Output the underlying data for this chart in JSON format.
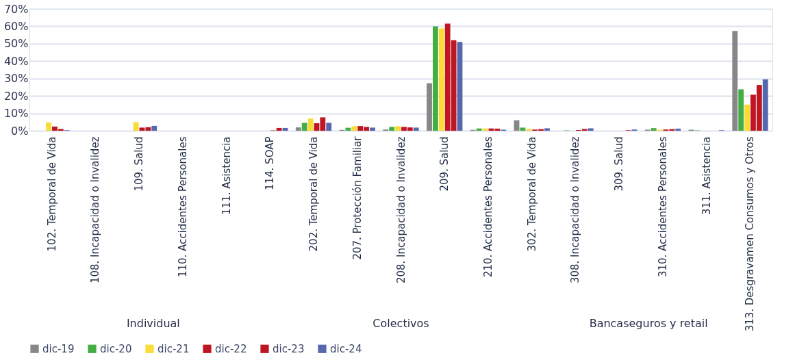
{
  "chart_data": {
    "type": "bar",
    "categories": [
      "102. Temporal de Vida",
      "108. Incapacidad o Invalidez",
      "109. Salud",
      "110. Accidentes Personales",
      "111. Asistencia",
      "114. SOAP",
      "202. Temporal de Vida",
      "207. Protección Familiar",
      "208. Incapacidad o Invalidez",
      "209. Salud",
      "210. Accidentes Personales",
      "302. Temporal de Vida",
      "308. Incapacidad o Invalidez",
      "309. Salud",
      "310. Accidentes Personales",
      "311. Asistencia",
      "313. Desgravamen Consumos y Otros"
    ],
    "series": [
      {
        "name": "dic-19",
        "color": "#878787",
        "values": [
          0,
          0,
          0,
          0,
          0,
          0,
          1.9,
          0.5,
          0.7,
          27.3,
          0.5,
          6,
          0,
          0,
          0.6,
          0.6,
          57.3
        ]
      },
      {
        "name": "dic-20",
        "color": "#44ad45",
        "values": [
          0,
          0,
          0,
          0,
          0,
          0,
          4.5,
          1.7,
          2.2,
          60,
          1.3,
          1.8,
          0.2,
          0,
          1.5,
          0.2,
          23.8
        ]
      },
      {
        "name": "dic-21",
        "color": "#f9dc35",
        "values": [
          4.8,
          0,
          4.9,
          0,
          0,
          0,
          7,
          2.6,
          2.6,
          58.8,
          1.3,
          1,
          null,
          0,
          0.6,
          0,
          15
        ]
      },
      {
        "name": "dic-22",
        "color": "#be1622",
        "values": [
          2.4,
          0,
          1.8,
          0,
          0,
          0.2,
          4.3,
          2.7,
          2.2,
          61.5,
          1.3,
          0.7,
          0.4,
          0,
          0.7,
          0,
          20.7
        ]
      },
      {
        "name": "dic-23",
        "color": "#be1622",
        "values": [
          1,
          0,
          2,
          0,
          0,
          1.6,
          7.7,
          2.2,
          1.9,
          52,
          1.2,
          0.9,
          1,
          0.3,
          0.9,
          0,
          26.3
        ]
      },
      {
        "name": "dic-24",
        "color": "#5468ae",
        "values": [
          0.3,
          0,
          2.8,
          0,
          0,
          1.6,
          4.5,
          1.8,
          1.8,
          51,
          0.6,
          1.4,
          1.4,
          0.7,
          1.2,
          0.3,
          29.5
        ]
      }
    ],
    "ylim": [
      0,
      70
    ],
    "yticks": [
      {
        "value": 0,
        "label": "0%"
      },
      {
        "value": 10,
        "label": "10%"
      },
      {
        "value": 20,
        "label": "20%"
      },
      {
        "value": 30,
        "label": "30%"
      },
      {
        "value": 40,
        "label": "40%"
      },
      {
        "value": 50,
        "label": "50%"
      },
      {
        "value": 60,
        "label": "60%"
      },
      {
        "value": 70,
        "label": "70%"
      }
    ],
    "annotations": [
      "Individual",
      "Colectivos",
      "Bancaseguros y retail"
    ],
    "grid": "y",
    "legend": "bottom"
  }
}
